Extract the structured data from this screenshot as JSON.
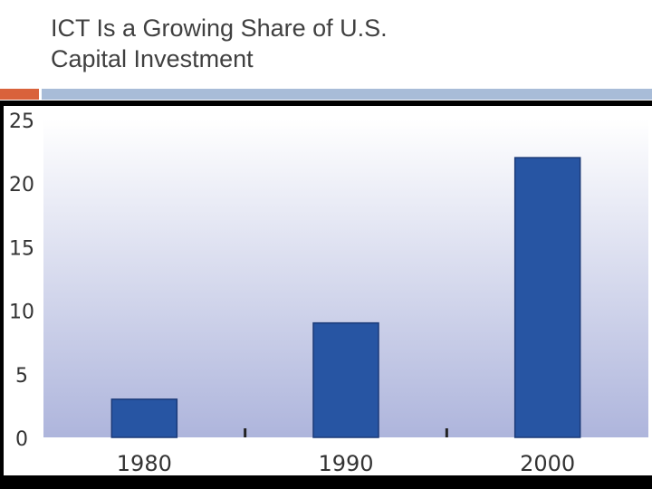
{
  "slide": {
    "title": "ICT Is a Growing Share of  U.S.\nCapital Investment"
  },
  "colors": {
    "title_text": "#404040",
    "accent_bar": "#d9623b",
    "rule_bar": "#a8bcd8",
    "bar_fill": "#2755a3",
    "bar_stroke": "#1b3a78",
    "plot_bg_top": "#ffffff",
    "plot_bg_bottom": "#aeb5dc",
    "axis_text": "#333333"
  },
  "chart_data": {
    "type": "bar",
    "categories": [
      "1980",
      "1990",
      "2000"
    ],
    "values": [
      3,
      9,
      22
    ],
    "title": "",
    "xlabel": "",
    "ylabel": "",
    "ylim": [
      0,
      25
    ],
    "yticks": [
      "0",
      "5",
      "10",
      "15",
      "20",
      "25"
    ],
    "grid": false,
    "legend": "none"
  }
}
